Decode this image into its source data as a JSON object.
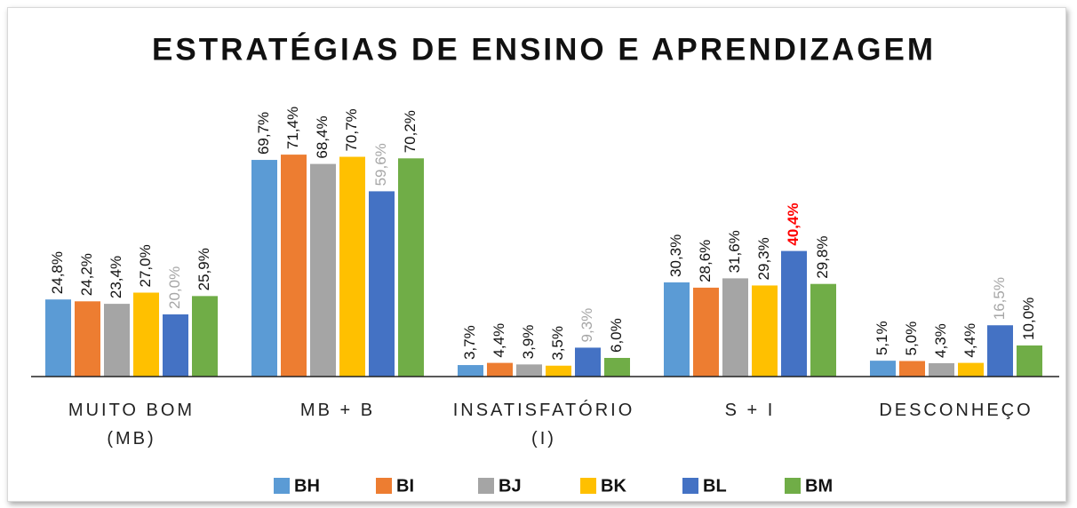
{
  "chart_data": {
    "type": "bar",
    "title": "ESTRATÉGIAS DE ENSINO E APRENDIZAGEM",
    "categories": [
      "MUITO BOM\n(MB)",
      "MB + B",
      "INSATISFATÓRIO\n(I)",
      "S + I",
      "DESCONHEÇO"
    ],
    "ylim": [
      0,
      80
    ],
    "legend": "bottom",
    "series": [
      {
        "name": "BH",
        "color": "#5b9bd5",
        "values": [
          24.8,
          69.7,
          3.7,
          30.3,
          5.1
        ],
        "value_labels": [
          "24,8%",
          "69,7%",
          "3,7%",
          "30,3%",
          "5,1%"
        ]
      },
      {
        "name": "BI",
        "color": "#ed7d31",
        "values": [
          24.2,
          71.4,
          4.4,
          28.6,
          5.0
        ],
        "value_labels": [
          "24,2%",
          "71,4%",
          "4,4%",
          "28,6%",
          "5,0%"
        ]
      },
      {
        "name": "BJ",
        "color": "#a5a5a5",
        "values": [
          23.4,
          68.4,
          3.9,
          31.6,
          4.3
        ],
        "value_labels": [
          "23,4%",
          "68,4%",
          "3,9%",
          "31,6%",
          "4,3%"
        ]
      },
      {
        "name": "BK",
        "color": "#ffc000",
        "values": [
          27.0,
          70.7,
          3.5,
          29.3,
          4.4
        ],
        "value_labels": [
          "27,0%",
          "70,7%",
          "3,5%",
          "29,3%",
          "4,4%"
        ]
      },
      {
        "name": "BL",
        "color": "#4472c4",
        "values": [
          20.0,
          59.6,
          9.3,
          40.4,
          16.5
        ],
        "value_labels": [
          "20,0%",
          "59,6%",
          "9,3%",
          "40,4%",
          "16,5%"
        ],
        "value_label_colors": [
          "#a6a6a6",
          "#a6a6a6",
          "#a6a6a6",
          "#ff0000",
          "#a6a6a6"
        ],
        "value_label_bold": [
          false,
          false,
          false,
          true,
          false
        ]
      },
      {
        "name": "BM",
        "color": "#70ad47",
        "values": [
          25.9,
          70.2,
          6.0,
          29.8,
          10.0
        ],
        "value_labels": [
          "25,9%",
          "70,2%",
          "6,0%",
          "29,8%",
          "10,0%"
        ]
      }
    ]
  }
}
